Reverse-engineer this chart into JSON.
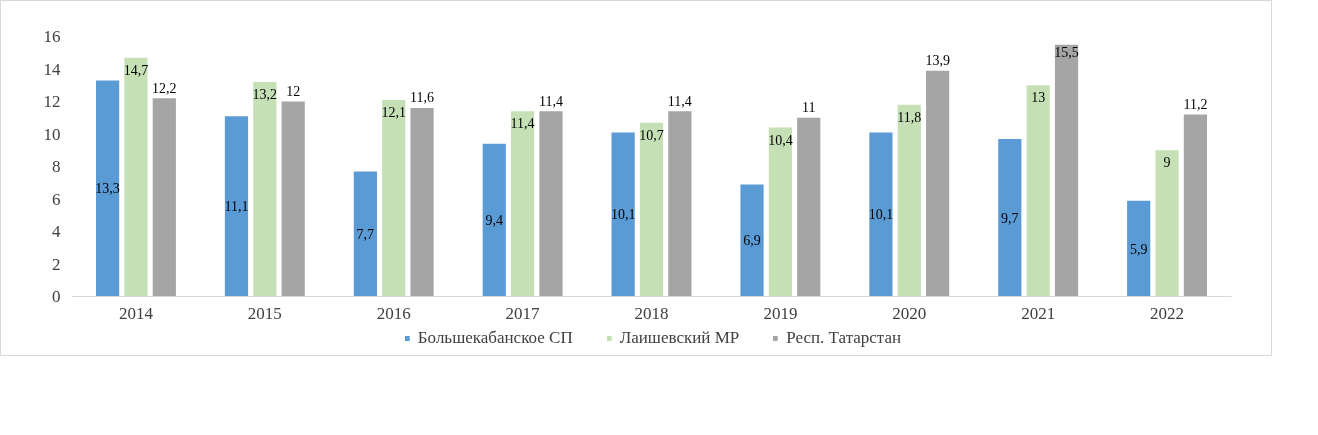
{
  "chart_data": {
    "type": "bar",
    "categories": [
      "2014",
      "2015",
      "2016",
      "2017",
      "2018",
      "2019",
      "2020",
      "2021",
      "2022"
    ],
    "series": [
      {
        "name": "Большекабанское СП",
        "color": "#5b9bd5",
        "values": [
          13.3,
          11.1,
          7.7,
          9.4,
          10.1,
          6.9,
          10.1,
          9.7,
          5.9
        ],
        "value_labels": [
          "13,3",
          "11,1",
          "7,7",
          "9,4",
          "10,1",
          "6,9",
          "10,1",
          "9,7",
          "5,9"
        ]
      },
      {
        "name": "Лаишевский МР",
        "color": "#c5e0b4",
        "values": [
          14.7,
          13.2,
          12.1,
          11.4,
          10.7,
          10.4,
          11.8,
          13,
          9
        ],
        "value_labels": [
          "14,7",
          "13,2",
          "12,1",
          "11,4",
          "10,7",
          "10,4",
          "11,8",
          "13",
          "9"
        ]
      },
      {
        "name": "Респ. Татарстан",
        "color": "#a5a5a5",
        "values": [
          12.2,
          12,
          11.6,
          11.4,
          11.4,
          11,
          13.9,
          15.5,
          11.2
        ],
        "value_labels": [
          "12,2",
          "12",
          "11,6",
          "11,4",
          "11,4",
          "11",
          "13,9",
          "15,5",
          "11,2"
        ]
      }
    ],
    "ylim": [
      0,
      16
    ],
    "yticks": [
      0,
      2,
      4,
      6,
      8,
      10,
      12,
      14,
      16
    ],
    "grid": false,
    "legend": "bottom"
  }
}
